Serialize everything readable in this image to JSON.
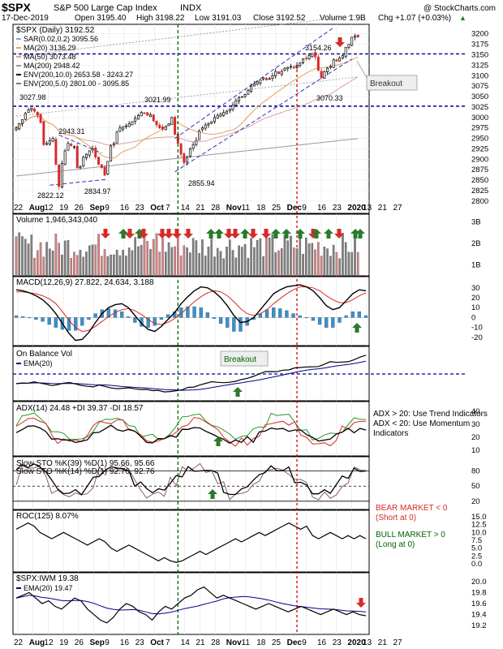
{
  "header": {
    "symbol": "$SPX",
    "name": "S&P 500 Large Cap Index",
    "exchange": "INDX",
    "watermark": "@ StockCharts.com",
    "date": "17-Dec-2019",
    "open": "Open 3195.40",
    "high": "High 3198.22",
    "low": "Low 3191.03",
    "close": "Close 3192.52",
    "volume": "Volume 1.9B",
    "chg": "Chg +1.07 (+0.03%)",
    "chg_arrow": "▲"
  },
  "colors": {
    "up": "#2a7a2a",
    "down": "#d62a2a",
    "candle_up_body": "#ffffff",
    "blue_line": "#00008b",
    "sma20": "#e6a060",
    "sma50": "#d8a0a0",
    "sma200": "#999999",
    "green_line": "#006400",
    "red_line": "#cc0000",
    "macd_hist": "#3f8fc4",
    "vol_down": "#d98080",
    "vol_up": "#808080"
  },
  "x_axis": {
    "labels": [
      "22",
      "Aug",
      "12",
      "19",
      "26",
      "Sep",
      "9",
      "16",
      "23",
      "Oct",
      "7",
      "14",
      "21",
      "28",
      "Nov",
      "11",
      "18",
      "25",
      "Dec",
      "9",
      "16",
      "23",
      "2020",
      "13",
      "21",
      "27"
    ],
    "bold": [
      "Aug",
      "Sep",
      "Oct",
      "Nov",
      "Dec",
      "2020"
    ]
  },
  "chart_data": [
    {
      "type": "candlestick",
      "panel": "price",
      "title": "$SPX (Daily) 3192.52",
      "legend": [
        {
          "text": "SAR(0.02,0.2) 3095.56",
          "color": "#9aa0c8"
        },
        {
          "text": "MA(20) 3136.29",
          "color": "#e6a060"
        },
        {
          "text": "MA(50) 3073.48",
          "color": "#d8a0a0"
        },
        {
          "text": "MA(200) 2948.42",
          "color": "#999999"
        },
        {
          "text": "ENV(200,10.0) 2653.58 - 3243.27",
          "color": "#000000"
        },
        {
          "text": "ENV(200,5.0) 2801.00 - 3095.85",
          "color": "#777777"
        }
      ],
      "ylim": [
        2790,
        3215
      ],
      "yticks": [
        2800,
        2825,
        2850,
        2875,
        2900,
        2925,
        2950,
        2975,
        3000,
        3025,
        3050,
        3075,
        3100,
        3125,
        3150,
        3175,
        3200
      ],
      "annotations": [
        "3027.98",
        "3021.99",
        "2943.31",
        "2822.12",
        "2834.97",
        "2855.94",
        "3154.26",
        "3070.33",
        "Breakout"
      ],
      "horizontal_lines": [
        3152,
        3027
      ],
      "closes": [
        2975,
        2985,
        2995,
        3010,
        3018,
        3022,
        3015,
        3005,
        2988,
        2935,
        2938,
        2945,
        2950,
        2888,
        2835,
        2890,
        2920,
        2938,
        2932,
        2930,
        2880,
        2882,
        2905,
        2912,
        2920,
        2925,
        2905,
        2888,
        2880,
        2862,
        2895,
        2932,
        2938,
        2965,
        2975,
        2978,
        2980,
        2985,
        2990,
        2998,
        3005,
        3012,
        3010,
        3005,
        3007,
        2992,
        2982,
        2975,
        2972,
        2978,
        2985,
        3000,
        2960,
        2938,
        2912,
        2892,
        2905,
        2925,
        2935,
        2945,
        2968,
        2975,
        2982,
        2985,
        2990,
        3000,
        3005,
        3008,
        3012,
        3015,
        3020,
        3030,
        3040,
        3048,
        3050,
        3055,
        3065,
        3075,
        3080,
        3085,
        3090,
        3095,
        3090,
        3093,
        3100,
        3110,
        3105,
        3110,
        3118,
        3120,
        3122,
        3118,
        3125,
        3130,
        3140,
        3140,
        3148,
        3153,
        3145,
        3113,
        3095,
        3110,
        3118,
        3122,
        3138,
        3135,
        3142,
        3148,
        3168,
        3175,
        3192,
        3195,
        3192
      ]
    },
    {
      "type": "bar",
      "panel": "volume",
      "label": "Volume 1,946,343,040",
      "ylim": [
        0.5,
        3.2
      ],
      "yticks_labels": [
        "1B",
        "2B",
        "3B"
      ],
      "yticks": [
        1,
        2,
        3
      ]
    },
    {
      "type": "line",
      "panel": "macd",
      "label": "MACD(12,26,9) 27.822, 24.634, 3.188",
      "ylim": [
        -25,
        38
      ],
      "yticks": [
        -20,
        -10,
        0,
        10,
        20,
        30
      ],
      "series": [
        {
          "values": [
            28,
            27,
            25,
            22,
            18,
            12,
            4,
            -6,
            -16,
            -23,
            -22,
            -15,
            -5,
            4,
            10,
            13,
            14,
            10,
            2,
            -6,
            -12,
            -14,
            -9,
            -2,
            5,
            14,
            21,
            27,
            31,
            30,
            26,
            20,
            12,
            2,
            -5,
            -4,
            0,
            8,
            16,
            24,
            28,
            31,
            32,
            33,
            31,
            27,
            20,
            12,
            8,
            10,
            17,
            24,
            28,
            27
          ]
        },
        {
          "values": [
            26,
            26,
            25,
            24,
            22,
            19,
            14,
            6,
            -3,
            -10,
            -14,
            -13,
            -9,
            -4,
            1,
            5,
            8,
            9,
            7,
            3,
            -2,
            -6,
            -7,
            -5,
            -1,
            4,
            10,
            16,
            21,
            25,
            27,
            26,
            22,
            16,
            9,
            4,
            2,
            4,
            8,
            14,
            19,
            24,
            28,
            31,
            31,
            30,
            27,
            22,
            18,
            15,
            15,
            18,
            22,
            25
          ]
        },
        {
          "values": [
            2,
            1,
            0,
            -2,
            -4,
            -7,
            -10,
            -12,
            -13,
            -13,
            -8,
            -2,
            4,
            8,
            9,
            8,
            6,
            1,
            -5,
            -9,
            -10,
            -8,
            -2,
            3,
            6,
            10,
            11,
            11,
            10,
            5,
            -1,
            -6,
            -10,
            -14,
            -14,
            -8,
            -2,
            4,
            8,
            10,
            9,
            7,
            4,
            2,
            0,
            -3,
            -7,
            -10,
            -10,
            -5,
            2,
            6,
            6,
            2
          ]
        }
      ]
    },
    {
      "type": "line",
      "panel": "obv",
      "label": "On Balance Vol",
      "label2": "EMA(20)",
      "annotation": "Breakout"
    },
    {
      "type": "line",
      "panel": "adx",
      "label": "ADX(14) 24.48 +DI 39.37 -DI 18.57",
      "ylim": [
        8,
        45
      ],
      "yticks": [
        10,
        20,
        30,
        40
      ],
      "notes": [
        "ADX > 20: Use Trend Indicators",
        "ADX < 20: Use Momentum",
        "Indicators"
      ]
    },
    {
      "type": "line",
      "panel": "sto",
      "label1": "Slow STO %K(39) %D(1) 95.66, 95.66",
      "label2": "Slow STO %K(14) %D(1) 92.76, 92.76",
      "ylim": [
        10,
        102
      ],
      "yticks": [
        20,
        50,
        80
      ],
      "ytick_labels": [
        "20",
        "50",
        "80"
      ]
    },
    {
      "type": "line",
      "panel": "roc",
      "label": "ROC(125) 8.07%",
      "ylim": [
        -1.5,
        16
      ],
      "yticks": [
        0,
        2.5,
        5,
        7.5,
        10,
        12.5,
        15
      ],
      "ytick_labels": [
        "0.0",
        "2.5",
        "5.0",
        "7.5",
        "10.0",
        "12.5",
        "15.0"
      ],
      "notes": {
        "bear": "BEAR MARKET < 0",
        "bear_sub": "(Short at 0)",
        "bull": "BULL MARKET > 0",
        "bull_sub": "(Long at 0)"
      }
    },
    {
      "type": "line",
      "panel": "ratio",
      "label": "$SPX:IWM 19.38",
      "label2": "EMA(20) 19.47",
      "ylim": [
        19.1,
        20.1
      ],
      "yticks": [
        19.2,
        19.4,
        19.6,
        19.8,
        20.0
      ],
      "ytick_labels": [
        "19.2",
        "19.4",
        "19.6",
        "19.8",
        "20.0"
      ]
    }
  ]
}
